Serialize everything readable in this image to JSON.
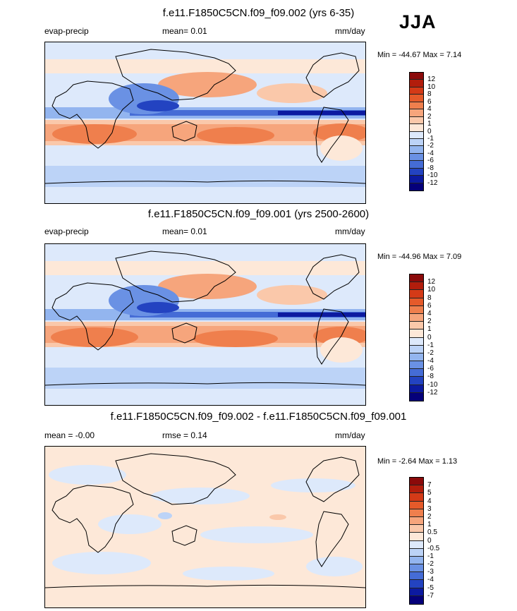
{
  "season": "JJA",
  "panels": [
    {
      "title": "f.e11.F1850C5CN.f09_f09.002 (yrs 6-35)",
      "left_label": "evap-precip",
      "center_label": "mean=  0.01",
      "right_label": "mm/day",
      "minmax": "Min = -44.67 Max =  7.14",
      "colorbar_levels": [
        "12",
        "10",
        "8",
        "6",
        "4",
        "2",
        "1",
        "0",
        "-1",
        "-2",
        "-4",
        "-6",
        "-8",
        "-10",
        "-12"
      ],
      "colorbar_colors": [
        "#8b0a0a",
        "#b21d0c",
        "#d43a17",
        "#e55a2a",
        "#ef7f4d",
        "#f6a57c",
        "#fac8aa",
        "#fde8d8",
        "#dde9fb",
        "#bcd3f7",
        "#93b5ef",
        "#6a91e4",
        "#456cd6",
        "#2343c1",
        "#0c1aa0",
        "#05007a"
      ]
    },
    {
      "title": "f.e11.F1850C5CN.f09_f09.001 (yrs 2500-2600)",
      "left_label": "evap-precip",
      "center_label": "mean=  0.01",
      "right_label": "mm/day",
      "minmax": "Min = -44.96 Max =  7.09",
      "colorbar_levels": [
        "12",
        "10",
        "8",
        "6",
        "4",
        "2",
        "1",
        "0",
        "-1",
        "-2",
        "-4",
        "-6",
        "-8",
        "-10",
        "-12"
      ],
      "colorbar_colors": [
        "#8b0a0a",
        "#b21d0c",
        "#d43a17",
        "#e55a2a",
        "#ef7f4d",
        "#f6a57c",
        "#fac8aa",
        "#fde8d8",
        "#dde9fb",
        "#bcd3f7",
        "#93b5ef",
        "#6a91e4",
        "#456cd6",
        "#2343c1",
        "#0c1aa0",
        "#05007a"
      ]
    },
    {
      "title": "f.e11.F1850C5CN.f09_f09.002 - f.e11.F1850C5CN.f09_f09.001",
      "left_label": "mean = -0.00",
      "center_label": "rmse =  0.14",
      "right_label": "mm/day",
      "minmax": "Min = -2.64 Max =  1.13",
      "colorbar_levels": [
        "7",
        "5",
        "4",
        "3",
        "2",
        "1",
        "0.5",
        "0",
        "-0.5",
        "-1",
        "-2",
        "-3",
        "-4",
        "-5",
        "-7"
      ],
      "colorbar_colors": [
        "#8b0a0a",
        "#b21d0c",
        "#d43a17",
        "#e55a2a",
        "#ef7f4d",
        "#f6a57c",
        "#fac8aa",
        "#fde8d8",
        "#dde9fb",
        "#bcd3f7",
        "#93b5ef",
        "#6a91e4",
        "#456cd6",
        "#2343c1",
        "#0c1aa0",
        "#05007a"
      ]
    }
  ],
  "chart_data": [
    {
      "type": "heatmap",
      "title": "f.e11.F1850C5CN.f09_f09.002 (yrs 6-35)",
      "variable": "evap-precip",
      "units": "mm/day",
      "mean": 0.01,
      "min": -44.67,
      "max": 7.14,
      "contour_levels": [
        -12,
        -10,
        -8,
        -6,
        -4,
        -2,
        -1,
        0,
        1,
        2,
        4,
        6,
        8,
        10,
        12
      ]
    },
    {
      "type": "heatmap",
      "title": "f.e11.F1850C5CN.f09_f09.001 (yrs 2500-2600)",
      "variable": "evap-precip",
      "units": "mm/day",
      "mean": 0.01,
      "min": -44.96,
      "max": 7.09,
      "contour_levels": [
        -12,
        -10,
        -8,
        -6,
        -4,
        -2,
        -1,
        0,
        1,
        2,
        4,
        6,
        8,
        10,
        12
      ]
    },
    {
      "type": "heatmap",
      "title": "f.e11.F1850C5CN.f09_f09.002 - f.e11.F1850C5CN.f09_f09.001",
      "units": "mm/day",
      "mean": -0.0,
      "rmse": 0.14,
      "min": -2.64,
      "max": 1.13,
      "contour_levels": [
        -7,
        -5,
        -4,
        -3,
        -2,
        -1,
        -0.5,
        0,
        0.5,
        1,
        2,
        3,
        4,
        5,
        7
      ]
    }
  ]
}
